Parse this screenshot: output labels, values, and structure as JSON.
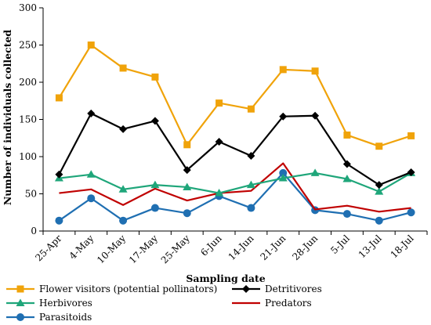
{
  "chart_data": {
    "type": "line",
    "title": "",
    "xlabel": "Sampling date",
    "ylabel": "Number of individuals collected",
    "ylim": [
      0,
      300
    ],
    "yticks": [
      0,
      50,
      100,
      150,
      200,
      250,
      300
    ],
    "grid": false,
    "categories": [
      "25-Apr",
      "4-May",
      "10-May",
      "17-May",
      "25-May",
      "6-Jun",
      "14-Jun",
      "21-Jun",
      "28-Jun",
      "5-Jul",
      "13-Jul",
      "18-Jul"
    ],
    "series": [
      {
        "name": "Flower visitors (potential pollinators)",
        "color": "#F0A30A",
        "marker": "square",
        "values": [
          179,
          250,
          219,
          207,
          116,
          172,
          164,
          217,
          215,
          129,
          114,
          128
        ]
      },
      {
        "name": "Detritivores",
        "color": "#000000",
        "marker": "diamond",
        "values": [
          76,
          158,
          137,
          148,
          82,
          120,
          101,
          154,
          155,
          90,
          62,
          79
        ]
      },
      {
        "name": "Herbivores",
        "color": "#1FA67A",
        "marker": "triangle",
        "values": [
          71,
          76,
          56,
          62,
          59,
          51,
          62,
          71,
          78,
          70,
          53,
          78
        ]
      },
      {
        "name": "Predators",
        "color": "#C00000",
        "marker": "none",
        "values": [
          51,
          56,
          35,
          57,
          41,
          51,
          54,
          91,
          29,
          34,
          26,
          31
        ]
      },
      {
        "name": "Parasitoids",
        "color": "#1F6FB2",
        "marker": "circle",
        "values": [
          14,
          44,
          14,
          31,
          24,
          47,
          31,
          78,
          28,
          23,
          14,
          25
        ]
      }
    ],
    "legend_position": "bottom"
  }
}
